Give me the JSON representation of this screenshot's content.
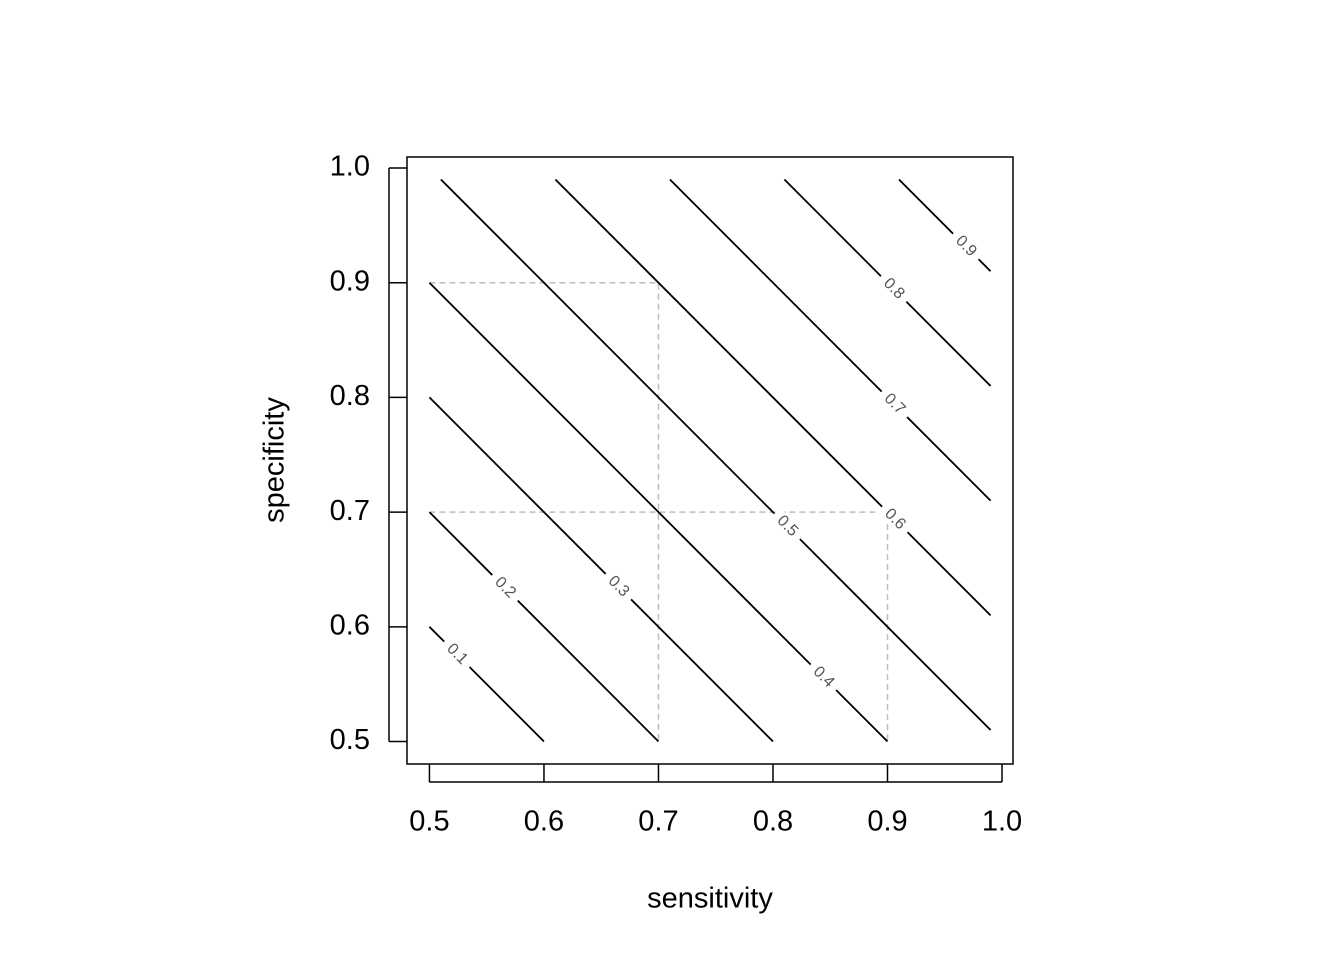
{
  "chart_data": {
    "type": "contour",
    "xlabel": "sensitivity",
    "ylabel": "specificity",
    "xlim": [
      0.4804,
      1.0096
    ],
    "ylim": [
      0.4804,
      1.0096
    ],
    "xticks": [
      0.5,
      0.6,
      0.7,
      0.8,
      0.9,
      {
        "value": 1,
        "label": "1.0"
      }
    ],
    "yticks": [
      0.5,
      0.6,
      0.7,
      0.8,
      0.9,
      {
        "value": 1,
        "label": "1.0"
      }
    ],
    "color": "#000000",
    "contours": [
      {
        "level": 0.1,
        "x": [
          0.5,
          0.6
        ],
        "y": [
          0.6,
          0.5
        ]
      },
      {
        "level": 0.2,
        "x": [
          0.5,
          0.7
        ],
        "y": [
          0.7,
          0.5
        ]
      },
      {
        "level": 0.3,
        "x": [
          0.5,
          0.8
        ],
        "y": [
          0.8,
          0.5
        ]
      },
      {
        "level": 0.4,
        "x": [
          0.5,
          0.9
        ],
        "y": [
          0.9,
          0.5
        ]
      },
      {
        "level": 0.5,
        "x": [
          0.51,
          0.99
        ],
        "y": [
          0.99,
          0.51
        ]
      },
      {
        "level": 0.6,
        "x": [
          0.61,
          0.99
        ],
        "y": [
          0.99,
          0.61
        ]
      },
      {
        "level": 0.7,
        "x": [
          0.71,
          0.99
        ],
        "y": [
          0.99,
          0.71
        ]
      },
      {
        "level": 0.8,
        "x": [
          0.81,
          0.99
        ],
        "y": [
          0.99,
          0.81
        ]
      },
      {
        "level": 0.9,
        "x": [
          0.91,
          0.99
        ],
        "y": [
          0.99,
          0.91
        ]
      }
    ],
    "reference_color": "#bebebe",
    "reference_lines": [
      {
        "x": [
          0.5,
          0.7,
          0.7
        ],
        "y": [
          0.9,
          0.9,
          0.5
        ]
      },
      {
        "x": [
          0.5,
          0.9,
          0.9
        ],
        "y": [
          0.7,
          0.7,
          0.5
        ]
      }
    ]
  }
}
